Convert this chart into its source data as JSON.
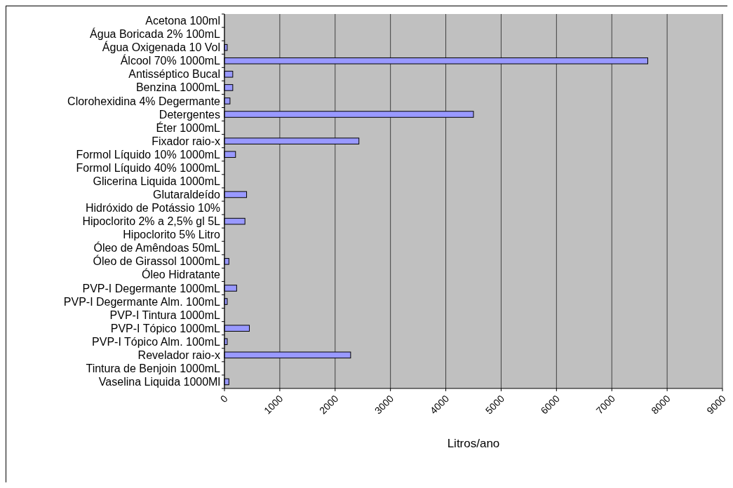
{
  "chart_data": {
    "type": "bar",
    "orientation": "horizontal",
    "xlabel": "Litros/ano",
    "categories": [
      "Acetona 100ml",
      "Água Boricada 2% 100mL",
      "Água Oxigenada 10 Vol",
      "Álcool 70% 1000mL",
      "Antisséptico Bucal",
      "Benzina 1000mL",
      "Clorohexidina 4% Degermante",
      "Detergentes",
      "Éter 1000mL",
      "Fixador raio-x",
      "Formol Líquido 10% 1000mL",
      "Formol Líquido 40% 1000mL",
      "Glicerina Liquida 1000mL",
      "Glutaraldeído",
      "Hidróxido de Potássio 10%",
      "Hipoclorito 2% a 2,5% gl 5L",
      "Hipoclorito 5% Litro",
      "Óleo de Amêndoas 50mL",
      "Óleo de Girassol 1000mL",
      "Óleo Hidratante",
      "PVP-I Degermante 1000mL",
      "PVP-I Degermante Alm. 100mL",
      "PVP-I Tintura 1000mL",
      "PVP-I Tópico 1000mL",
      "PVP-I Tópico Alm. 100mL",
      "Revelador raio-x",
      "Tintura de Benjoin 1000mL",
      "Vaselina Liquida 1000Ml"
    ],
    "values": [
      0,
      0,
      50,
      7650,
      150,
      150,
      100,
      4500,
      0,
      2430,
      200,
      0,
      0,
      400,
      0,
      370,
      0,
      0,
      80,
      0,
      220,
      50,
      0,
      450,
      50,
      2280,
      0,
      80
    ],
    "color": "#9999ff",
    "xlim": [
      0,
      9000
    ],
    "xticks": [
      0,
      1000,
      2000,
      3000,
      4000,
      5000,
      6000,
      7000,
      8000,
      9000
    ],
    "grid": "x"
  }
}
